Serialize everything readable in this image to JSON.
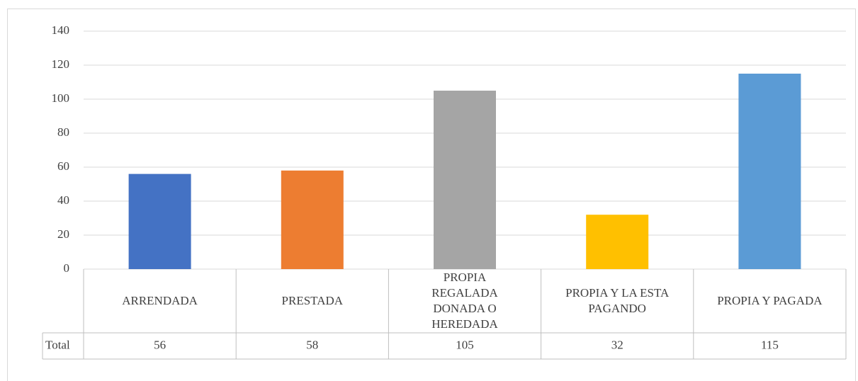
{
  "chart_data": {
    "type": "bar",
    "categories": [
      "ARRENDADA",
      "PRESTADA",
      "PROPIA REGALADA DONADA O HEREDADA",
      "PROPIA Y LA ESTA PAGANDO",
      "PROPIA Y PAGADA"
    ],
    "values": [
      56,
      58,
      105,
      32,
      115
    ],
    "colors": [
      "#4472c4",
      "#ed7d31",
      "#a5a5a5",
      "#ffc000",
      "#5b9bd5"
    ],
    "series_name": "Total",
    "ylim": [
      0,
      140
    ],
    "yticks": [
      0,
      20,
      40,
      60,
      80,
      100,
      120,
      140
    ],
    "grid": true
  }
}
